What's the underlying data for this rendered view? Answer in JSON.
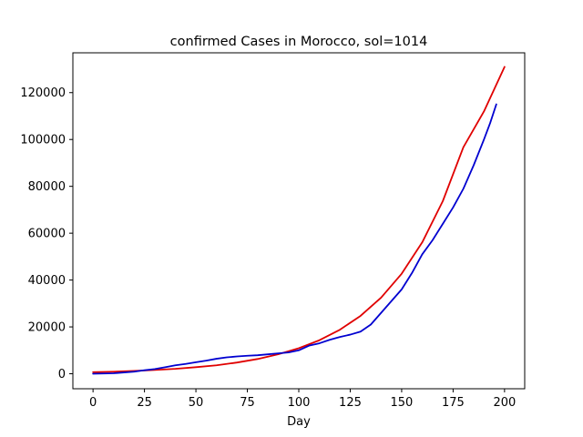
{
  "chart_data": {
    "type": "line",
    "title": "confirmed Cases in Morocco, sol=1014",
    "xlabel": "Day",
    "ylabel": "",
    "xlim": [
      -9.8,
      209.8
    ],
    "ylim": [
      -6400,
      137000
    ],
    "xticks": [
      0,
      25,
      50,
      75,
      100,
      125,
      150,
      175,
      200
    ],
    "xtick_labels": [
      "0",
      "25",
      "50",
      "75",
      "100",
      "125",
      "150",
      "175",
      "200"
    ],
    "yticks": [
      0,
      20000,
      40000,
      60000,
      80000,
      100000,
      120000
    ],
    "ytick_labels": [
      "0",
      "20000",
      "40000",
      "60000",
      "80000",
      "100000",
      "120000"
    ],
    "grid": false,
    "series": [
      {
        "color": "#e00000",
        "x": [
          0,
          10,
          20,
          30,
          40,
          50,
          60,
          70,
          80,
          90,
          100,
          110,
          120,
          130,
          140,
          150,
          160,
          170,
          180,
          190,
          200
        ],
        "y": [
          700,
          900,
          1200,
          1600,
          2100,
          2800,
          3600,
          4800,
          6300,
          8300,
          10900,
          14300,
          18800,
          24700,
          32500,
          42700,
          56100,
          73700,
          96700,
          112000,
          131000
        ]
      },
      {
        "color": "#0000d0",
        "x": [
          0,
          10,
          20,
          25,
          30,
          35,
          40,
          45,
          50,
          55,
          60,
          65,
          70,
          75,
          80,
          85,
          90,
          95,
          100,
          105,
          110,
          115,
          120,
          125,
          130,
          135,
          140,
          145,
          150,
          155,
          160,
          165,
          170,
          175,
          180,
          185,
          190,
          193,
          196
        ],
        "y": [
          0,
          200,
          900,
          1500,
          2000,
          2800,
          3600,
          4200,
          4900,
          5600,
          6400,
          7000,
          7400,
          7700,
          7900,
          8300,
          8700,
          9100,
          10000,
          12000,
          13000,
          14500,
          15700,
          16700,
          18000,
          21000,
          26000,
          31000,
          36000,
          43000,
          51000,
          57000,
          64000,
          71000,
          79000,
          89000,
          100000,
          107000,
          115000
        ]
      }
    ]
  }
}
